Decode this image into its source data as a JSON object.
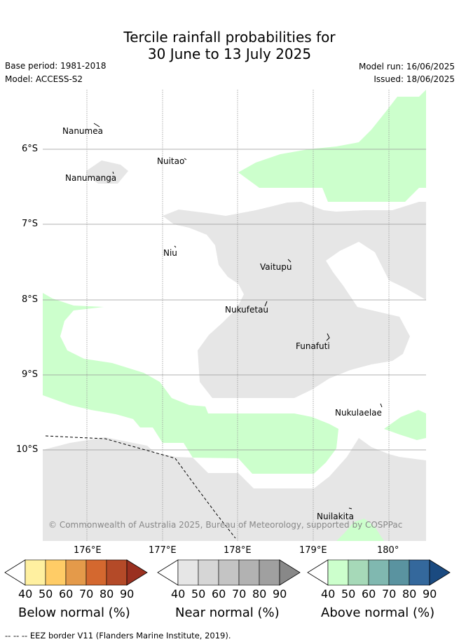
{
  "title": {
    "line1": "Tercile rainfall probabilities for",
    "line2": "30 June to 13 July 2025"
  },
  "meta": {
    "base_period": "Base period: 1981-2018",
    "model": "Model: ACCESS-S2",
    "model_run": "Model run: 16/06/2025",
    "issued": "Issued: 18/06/2025"
  },
  "axes": {
    "lat_labels": [
      "6°S",
      "7°S",
      "8°S",
      "9°S",
      "10°S"
    ],
    "lon_labels": [
      "176°E",
      "177°E",
      "178°E",
      "179°E",
      "180°"
    ]
  },
  "places": [
    {
      "key": "nanumea",
      "label": "Nanumea"
    },
    {
      "key": "nuitao",
      "label": "Nuitao"
    },
    {
      "key": "nanumanga",
      "label": "Nanumanga"
    },
    {
      "key": "niu",
      "label": "Niu"
    },
    {
      "key": "vaitupu",
      "label": "Vaitupu"
    },
    {
      "key": "nukufetau",
      "label": "Nukufetau"
    },
    {
      "key": "funafuti",
      "label": "Funafuti"
    },
    {
      "key": "nukulaelae",
      "label": "Nukulaelae"
    },
    {
      "key": "nuilakita",
      "label": "Nuilakita"
    }
  ],
  "copyright": "© Commonwealth of Australia 2025, Bureau of Meteorology, supported by COSPPac",
  "colorbars": [
    {
      "title": "Below normal (%)",
      "labels": [
        "40",
        "50",
        "60",
        "70",
        "80",
        "90"
      ],
      "colors": [
        "#ffffff",
        "#fff0a0",
        "#ffcc66",
        "#e49a4a",
        "#d4682f",
        "#b44a28",
        "#9a3020"
      ]
    },
    {
      "title": "Near normal (%)",
      "labels": [
        "40",
        "50",
        "60",
        "70",
        "80",
        "90"
      ],
      "colors": [
        "#ffffff",
        "#e6e6e6",
        "#d6d6d6",
        "#c4c4c4",
        "#b2b2b2",
        "#a0a0a0",
        "#888888"
      ]
    },
    {
      "title": "Above normal (%)",
      "labels": [
        "40",
        "50",
        "60",
        "70",
        "80",
        "90"
      ],
      "colors": [
        "#ffffff",
        "#ccffcc",
        "#a6d9b8",
        "#80b8b0",
        "#5a93a0",
        "#34689c",
        "#1a4a80"
      ]
    }
  ],
  "legend": {
    "eez_symbol": "-- -- --",
    "eez_text": "EEZ border V11 (Flanders Marine Institute, 2019)."
  },
  "colors": {
    "near_normal": "#e6e6e6",
    "above_normal": "#ccffcc",
    "grid": "#999999"
  }
}
